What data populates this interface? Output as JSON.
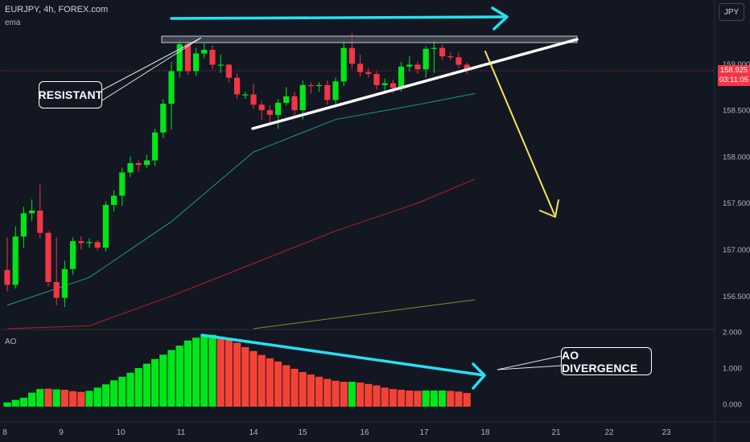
{
  "header": {
    "title": "EURJPY, 4h, FOREX.com",
    "indicator": "ema"
  },
  "currency_button": "JPY",
  "ao_label": "AO",
  "annotations": {
    "resistant": "RESISTANT",
    "ao_divergence": "AO DIVERGENCE"
  },
  "price_tag": {
    "price": "158.925",
    "countdown": "03:11:05"
  },
  "colors": {
    "bull": "#00e61a",
    "bear": "#f23645",
    "cyan": "#26e0f0",
    "yellow": "#f7e35a",
    "ema_teal": "#1e9a8e",
    "ema_red": "#b2202a",
    "ema_olive": "#8a8a2a",
    "ao_green": "#00e61a",
    "ao_red": "#f44336"
  },
  "chart_data": [
    {
      "type": "candlestick",
      "title": "EURJPY, 4h, FOREX.com",
      "y_axis": {
        "ticks": [
          156.5,
          157.0,
          157.5,
          158.0,
          158.5,
          159.0
        ],
        "range": [
          156.0,
          159.5
        ]
      },
      "x_axis": {
        "ticks": [
          "8",
          "9",
          "10",
          "11",
          "14",
          "15",
          "16",
          "17",
          "18",
          "21",
          "22",
          "23"
        ]
      },
      "candles": [
        [
          156.78,
          156.62,
          157.13,
          156.55
        ],
        [
          156.62,
          157.14,
          157.25,
          156.58
        ],
        [
          157.14,
          157.39,
          157.46,
          157.02
        ],
        [
          157.39,
          157.42,
          157.54,
          157.31
        ],
        [
          157.42,
          157.18,
          157.7,
          157.12
        ],
        [
          157.18,
          156.65,
          157.2,
          156.6
        ],
        [
          156.65,
          156.48,
          157.13,
          156.4
        ],
        [
          156.48,
          156.79,
          156.88,
          156.38
        ],
        [
          156.79,
          157.09,
          157.13,
          156.73
        ],
        [
          157.09,
          157.07,
          157.14,
          157.0
        ],
        [
          157.07,
          157.08,
          157.12,
          157.02
        ],
        [
          157.08,
          157.02,
          157.1,
          156.99
        ],
        [
          157.02,
          157.48,
          157.52,
          156.98
        ],
        [
          157.48,
          157.58,
          157.64,
          157.41
        ],
        [
          157.58,
          157.83,
          157.88,
          157.47
        ],
        [
          157.83,
          157.93,
          158.0,
          157.78
        ],
        [
          157.93,
          157.91,
          157.96,
          157.84
        ],
        [
          157.91,
          157.96,
          158.02,
          157.88
        ],
        [
          157.96,
          158.26,
          158.3,
          157.9
        ],
        [
          158.26,
          158.57,
          158.62,
          158.2
        ],
        [
          158.57,
          158.92,
          159.02,
          158.29
        ],
        [
          158.92,
          159.21,
          159.26,
          158.85
        ],
        [
          159.21,
          158.92,
          159.25,
          158.88
        ],
        [
          158.92,
          159.11,
          159.17,
          158.87
        ],
        [
          159.11,
          159.15,
          159.22,
          159.06
        ],
        [
          159.15,
          158.99,
          159.2,
          158.94
        ],
        [
          158.99,
          158.99,
          159.1,
          158.9
        ],
        [
          158.99,
          158.85,
          159.0,
          158.8
        ],
        [
          158.85,
          158.67,
          158.9,
          158.62
        ],
        [
          158.67,
          158.67,
          158.7,
          158.62
        ],
        [
          158.67,
          158.56,
          158.78,
          158.52
        ],
        [
          158.56,
          158.5,
          158.6,
          158.4
        ],
        [
          158.5,
          158.45,
          158.55,
          158.34
        ],
        [
          158.45,
          158.58,
          158.62,
          158.3
        ],
        [
          158.58,
          158.65,
          158.75,
          158.55
        ],
        [
          158.65,
          158.5,
          158.7,
          158.45
        ],
        [
          158.5,
          158.77,
          158.82,
          158.4
        ],
        [
          158.77,
          158.76,
          158.8,
          158.68
        ],
        [
          158.76,
          158.77,
          158.8,
          158.7
        ],
        [
          158.77,
          158.61,
          158.82,
          158.56
        ],
        [
          158.61,
          158.81,
          158.85,
          158.57
        ],
        [
          158.81,
          159.17,
          159.24,
          158.76
        ],
        [
          159.17,
          159.0,
          159.33,
          158.95
        ],
        [
          159.0,
          158.91,
          159.1,
          158.86
        ],
        [
          158.91,
          158.89,
          158.95,
          158.85
        ],
        [
          158.89,
          158.77,
          158.92,
          158.72
        ],
        [
          158.77,
          158.79,
          158.84,
          158.7
        ],
        [
          158.79,
          158.74,
          158.83,
          158.68
        ],
        [
          158.74,
          158.97,
          159.02,
          158.7
        ],
        [
          158.97,
          158.99,
          159.08,
          158.92
        ],
        [
          158.99,
          158.94,
          159.02,
          158.89
        ],
        [
          158.94,
          159.16,
          159.19,
          158.85
        ],
        [
          159.16,
          159.17,
          159.24,
          158.9
        ],
        [
          159.17,
          159.08,
          159.21,
          159.04
        ],
        [
          159.08,
          159.07,
          159.12,
          159.04
        ],
        [
          159.07,
          158.99,
          159.12,
          158.95
        ],
        [
          158.99,
          158.93,
          159.01,
          158.89
        ]
      ],
      "ema_lines": [
        {
          "x_idx": [
            0,
            10,
            20,
            30,
            40,
            50,
            57
          ],
          "y": [
            156.4,
            156.7,
            157.3,
            158.05,
            158.4,
            158.56,
            158.68
          ]
        },
        {
          "x_idx": [
            0,
            10,
            20,
            30,
            40,
            50,
            57
          ],
          "y": [
            156.0,
            156.18,
            156.5,
            156.85,
            157.2,
            157.5,
            157.76
          ]
        },
        {
          "x_idx": [
            30,
            57
          ],
          "y": [
            156.0,
            156.46
          ]
        }
      ],
      "last_price": 158.925
    },
    {
      "type": "bar",
      "title": "AO",
      "y_axis": {
        "ticks": [
          0.0,
          1.0,
          2.0
        ],
        "tick_labels": [
          "0.000",
          "1.000",
          "2.000"
        ],
        "range": [
          -0.2,
          2.1
        ]
      },
      "values": [
        0.05,
        0.12,
        0.18,
        0.32,
        0.42,
        0.43,
        0.41,
        0.4,
        0.36,
        0.34,
        0.37,
        0.46,
        0.55,
        0.66,
        0.76,
        0.87,
        1.0,
        1.12,
        1.25,
        1.37,
        1.5,
        1.62,
        1.76,
        1.84,
        1.88,
        1.92,
        1.87,
        1.79,
        1.7,
        1.58,
        1.47,
        1.36,
        1.27,
        1.18,
        1.08,
        0.98,
        0.89,
        0.82,
        0.76,
        0.7,
        0.65,
        0.62,
        0.62,
        0.6,
        0.56,
        0.52,
        0.46,
        0.42,
        0.4,
        0.38,
        0.37,
        0.38,
        0.38,
        0.38,
        0.37,
        0.35,
        0.31
      ],
      "colors": [
        "g",
        "g",
        "g",
        "g",
        "g",
        "r",
        "g",
        "r",
        "r",
        "r",
        "g",
        "g",
        "g",
        "g",
        "g",
        "g",
        "g",
        "g",
        "g",
        "g",
        "g",
        "g",
        "g",
        "g",
        "g",
        "g",
        "r",
        "r",
        "r",
        "r",
        "r",
        "r",
        "r",
        "r",
        "r",
        "r",
        "r",
        "r",
        "r",
        "r",
        "r",
        "r",
        "g",
        "r",
        "r",
        "r",
        "r",
        "r",
        "r",
        "r",
        "r",
        "g",
        "g",
        "g",
        "r",
        "r",
        "r"
      ]
    }
  ]
}
